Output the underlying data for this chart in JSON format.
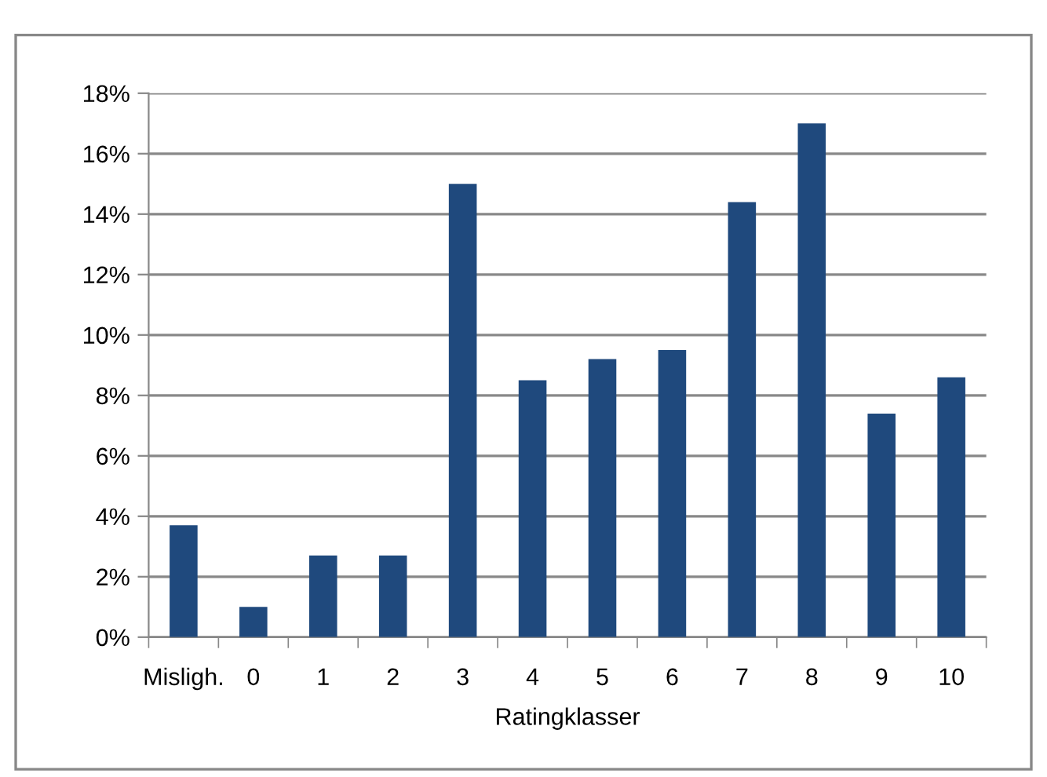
{
  "chart_data": {
    "type": "bar",
    "xlabel": "Ratingklasser",
    "categories": [
      "Misligh.",
      "0",
      "1",
      "2",
      "3",
      "4",
      "5",
      "6",
      "7",
      "8",
      "9",
      "10"
    ],
    "values": [
      3.7,
      1.0,
      2.7,
      2.7,
      15.0,
      8.5,
      9.2,
      9.5,
      14.4,
      17.0,
      7.4,
      8.6
    ],
    "color": "#1f497d",
    "ylim": [
      0,
      18
    ],
    "yticks": [
      {
        "value": 0,
        "label": "0%"
      },
      {
        "value": 2,
        "label": "2%"
      },
      {
        "value": 4,
        "label": "4%"
      },
      {
        "value": 6,
        "label": "6%"
      },
      {
        "value": 8,
        "label": "8%"
      },
      {
        "value": 10,
        "label": "10%"
      },
      {
        "value": 12,
        "label": "12%"
      },
      {
        "value": 14,
        "label": "14%"
      },
      {
        "value": 16,
        "label": "16%"
      },
      {
        "value": 18,
        "label": "18%"
      }
    ],
    "grid": "y"
  }
}
